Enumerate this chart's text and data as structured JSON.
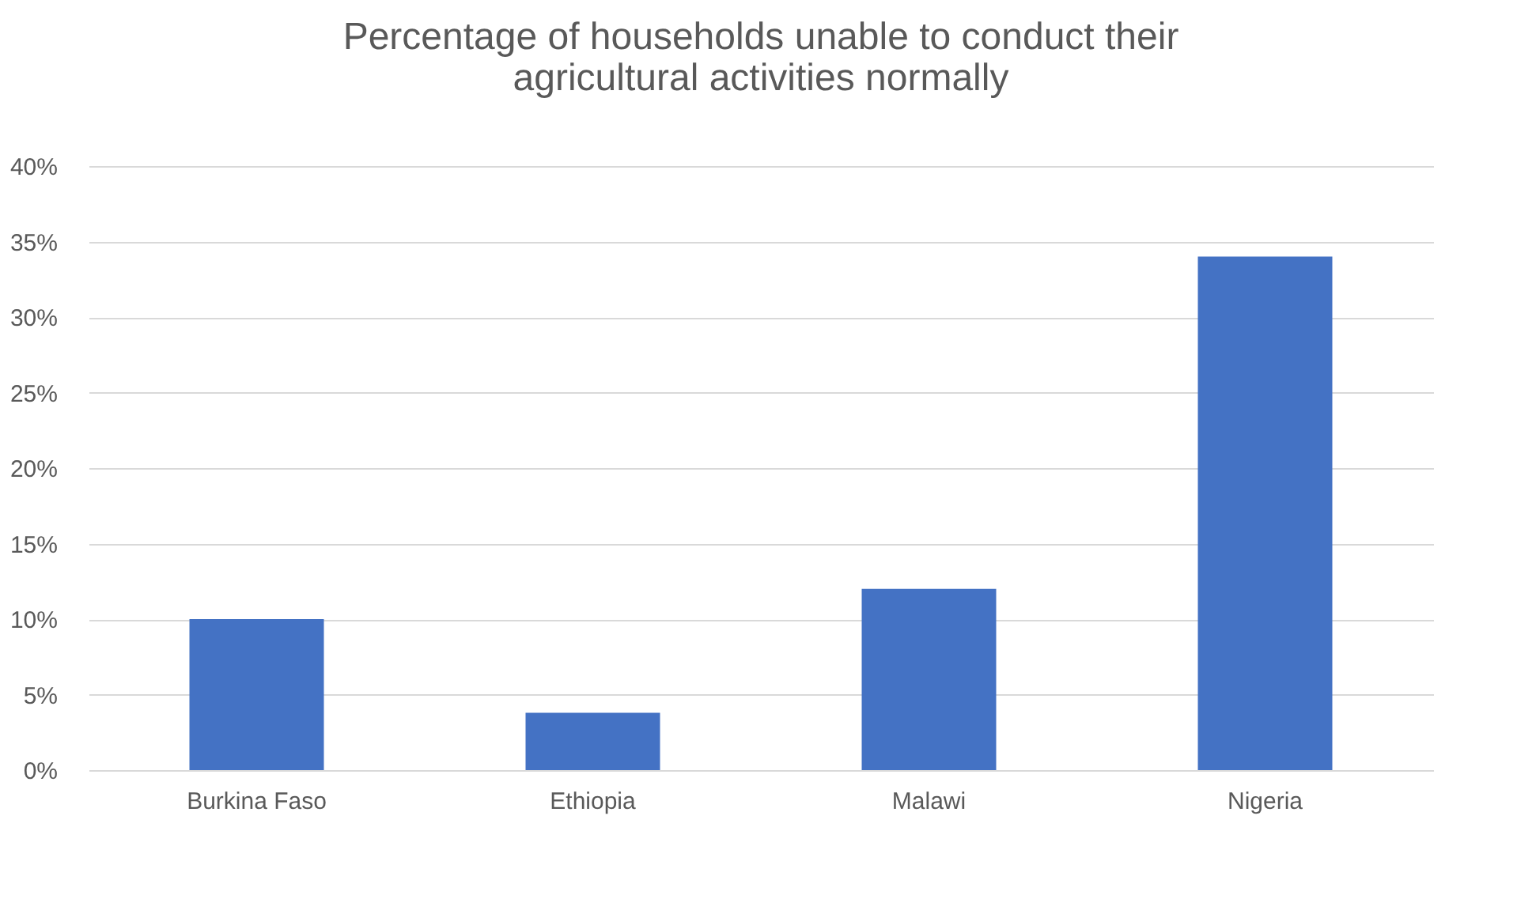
{
  "chart_data": {
    "type": "bar",
    "title": [
      "Percentage of households unable to conduct their",
      "agricultural activities normally"
    ],
    "categories": [
      "Burkina Faso",
      "Ethiopia",
      "Malawi",
      "Nigeria"
    ],
    "values": [
      10,
      3.8,
      12,
      34
    ],
    "color": "#4472c4",
    "ylim": [
      0,
      40
    ],
    "yticks": [
      {
        "value": 0,
        "label": "0%"
      },
      {
        "value": 5,
        "label": "5%"
      },
      {
        "value": 10,
        "label": "10%"
      },
      {
        "value": 15,
        "label": "15%"
      },
      {
        "value": 20,
        "label": "20%"
      },
      {
        "value": 25,
        "label": "25%"
      },
      {
        "value": 30,
        "label": "30%"
      },
      {
        "value": 35,
        "label": "35%"
      },
      {
        "value": 40,
        "label": "40%"
      }
    ],
    "grid": "y"
  }
}
